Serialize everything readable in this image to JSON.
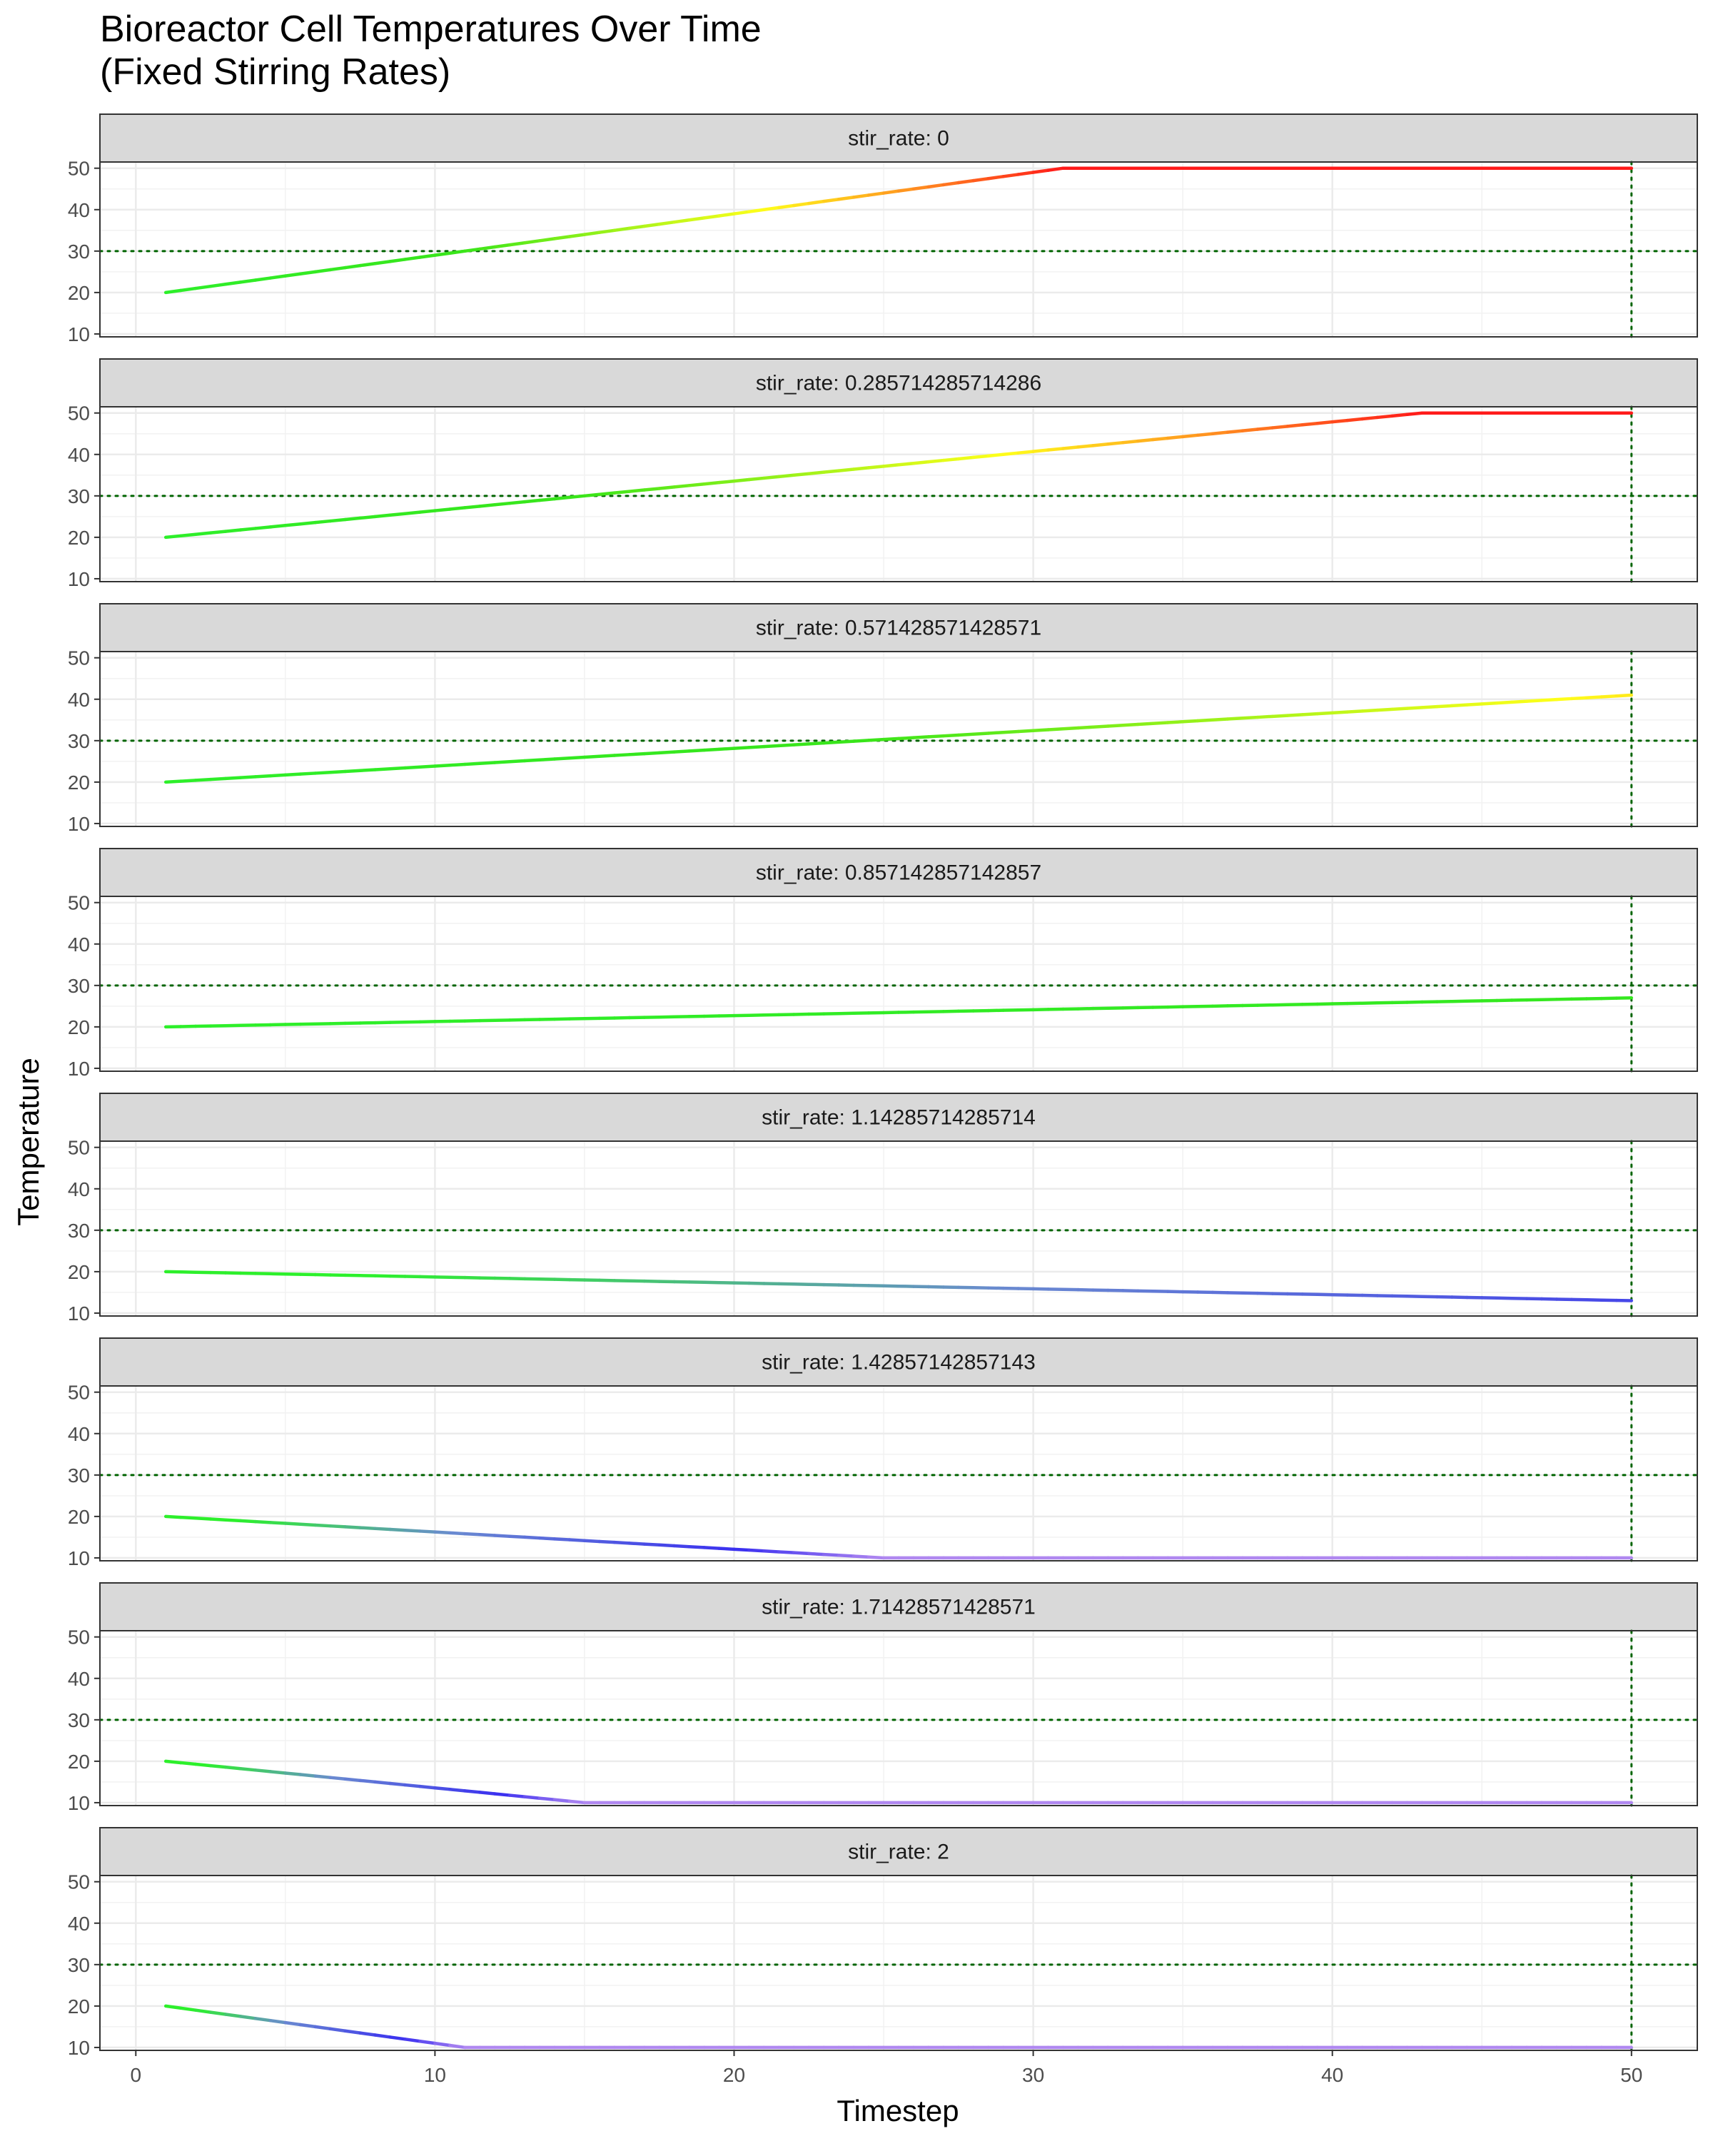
{
  "chart_data": {
    "type": "line",
    "title_lines": [
      "Bioreactor Cell Temperatures Over Time",
      "(Fixed Stirring Rates)"
    ],
    "xlabel": "Timestep",
    "ylabel": "Temperature",
    "xlim": [
      -1.2,
      52.2
    ],
    "ylim": [
      9.3,
      51.5
    ],
    "x_ticks": [
      0,
      10,
      20,
      30,
      40,
      50
    ],
    "y_ticks": [
      10,
      20,
      30,
      40,
      50
    ],
    "grid": true,
    "reference_lines": {
      "horizontal_y": 30,
      "vertical_x": 50,
      "color": "#006400",
      "style": "dotted"
    },
    "color_scale": {
      "stops": [
        {
          "t": 10,
          "color": "#b088f0"
        },
        {
          "t": 12,
          "color": "#3a2ff0"
        },
        {
          "t": 16,
          "color": "#6a8ad0"
        },
        {
          "t": 19,
          "color": "#2cf02c"
        },
        {
          "t": 30,
          "color": "#39e51a"
        },
        {
          "t": 40,
          "color": "#ffff1a"
        },
        {
          "t": 45,
          "color": "#ff9020"
        },
        {
          "t": 50,
          "color": "#ff1a1a"
        }
      ]
    },
    "facet_prefix": "stir_rate: ",
    "series": [
      {
        "name": "0",
        "points": [
          [
            1,
            20
          ],
          [
            31,
            50
          ],
          [
            50,
            50
          ]
        ]
      },
      {
        "name": "0.285714285714286",
        "points": [
          [
            1,
            20
          ],
          [
            43,
            50
          ],
          [
            50,
            50
          ]
        ]
      },
      {
        "name": "0.571428571428571",
        "points": [
          [
            1,
            20
          ],
          [
            50,
            41
          ]
        ]
      },
      {
        "name": "0.857142857142857",
        "points": [
          [
            1,
            20
          ],
          [
            50,
            27
          ]
        ]
      },
      {
        "name": "1.14285714285714",
        "points": [
          [
            1,
            20
          ],
          [
            50,
            13
          ]
        ]
      },
      {
        "name": "1.42857142857143",
        "points": [
          [
            1,
            20
          ],
          [
            25,
            10
          ],
          [
            50,
            10
          ]
        ]
      },
      {
        "name": "1.71428571428571",
        "points": [
          [
            1,
            20
          ],
          [
            15,
            10
          ],
          [
            50,
            10
          ]
        ]
      },
      {
        "name": "2",
        "points": [
          [
            1,
            20
          ],
          [
            11,
            10
          ],
          [
            50,
            10
          ]
        ]
      }
    ]
  }
}
